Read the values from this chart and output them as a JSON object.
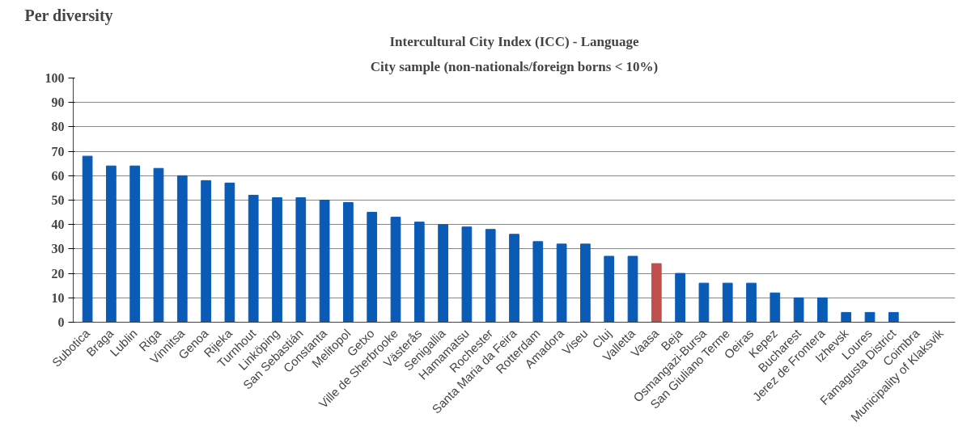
{
  "chart_data": {
    "type": "bar",
    "title": "Intercultural City Index (ICC) - Language",
    "subtitle": "City sample (non-nationals/foreign borns < 10%)",
    "annotations": [
      "Per diversity"
    ],
    "categories": [
      "Subotica",
      "Braga",
      "Lublin",
      "Riga",
      "Vinnitsa",
      "Genoa",
      "Rijeka",
      "Turnhout",
      "Linköping",
      "San Sebastián",
      "Constanta",
      "Melitopol",
      "Getxo",
      "Ville de Sherbrooke",
      "Västerås",
      "Senigallia",
      "Hamamatsu",
      "Rochester",
      "Santa Maria da Feira",
      "Rotterdam",
      "Amadora",
      "Viseu",
      "Cluj",
      "Valletta",
      "Vaasa",
      "Beja",
      "Osmangazi-Bursa",
      "San Giuliano Terme",
      "Oeiras",
      "Kepez",
      "Bucharest",
      "Jerez de Frontera",
      "Izhevsk",
      "Loures",
      "Famagusta District",
      "Coimbra",
      "Municipality of Klaksvik"
    ],
    "values": [
      68,
      64,
      64,
      63,
      60,
      58,
      57,
      52,
      51,
      51,
      50,
      49,
      45,
      43,
      41,
      40,
      39,
      38,
      36,
      33,
      32,
      32,
      27,
      27,
      24,
      20,
      16,
      16,
      16,
      12,
      10,
      10,
      4,
      4,
      4,
      0,
      0
    ],
    "colors": [
      "#0a5bb5",
      "#0a5bb5",
      "#0a5bb5",
      "#0a5bb5",
      "#0a5bb5",
      "#0a5bb5",
      "#0a5bb5",
      "#0a5bb5",
      "#0a5bb5",
      "#0a5bb5",
      "#0a5bb5",
      "#0a5bb5",
      "#0a5bb5",
      "#0a5bb5",
      "#0a5bb5",
      "#0a5bb5",
      "#0a5bb5",
      "#0a5bb5",
      "#0a5bb5",
      "#0a5bb5",
      "#0a5bb5",
      "#0a5bb5",
      "#0a5bb5",
      "#0a5bb5",
      "#c0504d",
      "#0a5bb5",
      "#0a5bb5",
      "#0a5bb5",
      "#0a5bb5",
      "#0a5bb5",
      "#0a5bb5",
      "#0a5bb5",
      "#0a5bb5",
      "#0a5bb5",
      "#0a5bb5",
      "#0a5bb5",
      "#0a5bb5"
    ],
    "ylim": [
      0,
      100
    ],
    "yticks": [
      0,
      10,
      20,
      30,
      40,
      50,
      60,
      70,
      80,
      90,
      100
    ],
    "grid": "y"
  }
}
